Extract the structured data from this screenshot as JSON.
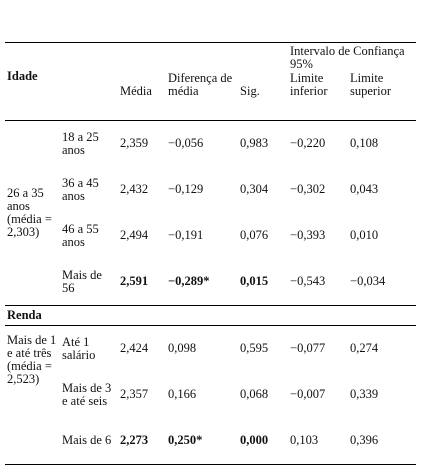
{
  "header": {
    "group": "Idade",
    "mean": "Média",
    "diff": "Diferença de média",
    "sig": "Sig.",
    "interval": "Intervalo de Confiança 95%",
    "lower": "Limite inferior",
    "upper": "Limite superior"
  },
  "sections": [
    {
      "group": "26 a 35 anos (média = 2,303)",
      "rows": [
        {
          "label": "18 a 25 anos",
          "values": [
            "2,359",
            "−0,056",
            "0,983",
            "−0,220",
            "0,108"
          ],
          "bold": false
        },
        {
          "label": "36 a 45 anos",
          "values": [
            "2,432",
            "−0,129",
            "0,304",
            "−0,302",
            "0,043"
          ],
          "bold": false
        },
        {
          "label": "46 a 55 anos",
          "values": [
            "2,494",
            "−0,191",
            "0,076",
            "−0,393",
            "0,010"
          ],
          "bold": false
        },
        {
          "label": "Mais de 56",
          "values": [
            "2,591",
            "−0,289*",
            "0,015",
            "−0,543",
            "−0,034"
          ],
          "bold": true
        }
      ]
    },
    {
      "title": "Renda",
      "group": "Mais de 1 e até três (média = 2,523)",
      "rows": [
        {
          "label": "Até 1 salário",
          "values": [
            "2,424",
            "0,098",
            "0,595",
            "−0,077",
            "0,274"
          ],
          "bold": false
        },
        {
          "label": "Mais de 3 e até seis",
          "values": [
            "2,357",
            "0,166",
            "0,068",
            "−0,007",
            "0,339"
          ],
          "bold": false
        },
        {
          "label": "Mais de 6",
          "values": [
            "2,273",
            "0,250*",
            "0,000",
            "0,103",
            "0,396"
          ],
          "bold": true
        }
      ]
    }
  ]
}
